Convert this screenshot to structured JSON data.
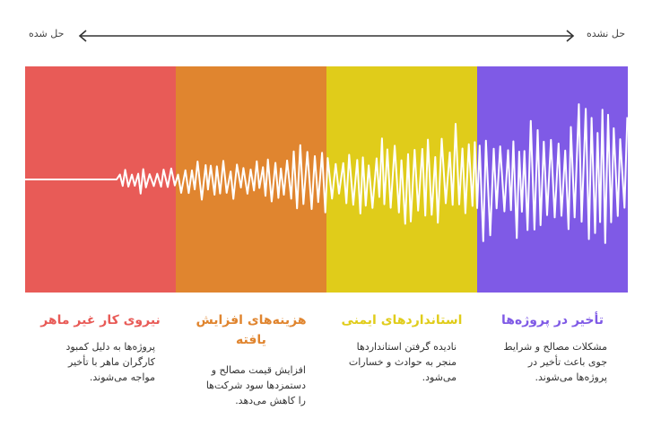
{
  "scale": {
    "left_label": "حل شده",
    "right_label": "حل نشده"
  },
  "panels": [
    {
      "color": "#E85B57",
      "title": "نیروی کار غیر ماهر",
      "title_color": "#E85B57",
      "description": "پروژه‌ها به دلیل کمبود کارگران ماهر با تأخیر مواجه می‌شوند."
    },
    {
      "color": "#E0852F",
      "title": "هزینه‌های افزایش یافته",
      "title_color": "#E0852F",
      "description": "افزایش قیمت مصالح و دستمزدها سود شرکت‌ها را کاهش می‌دهد."
    },
    {
      "color": "#E0CC1A",
      "title": "استانداردهای ایمنی",
      "title_color": "#E0CC1A",
      "description": "نادیده گرفتن استانداردها منجر به حوادث و خسارات می‌شود."
    },
    {
      "color": "#7F5AE6",
      "title": "تأخیر در پروژه‌ها",
      "title_color": "#7F5AE6",
      "description": "مشکلات مصالح و شرایط جوی باعث تأخیر در پروژه‌ها می‌شوند."
    }
  ]
}
